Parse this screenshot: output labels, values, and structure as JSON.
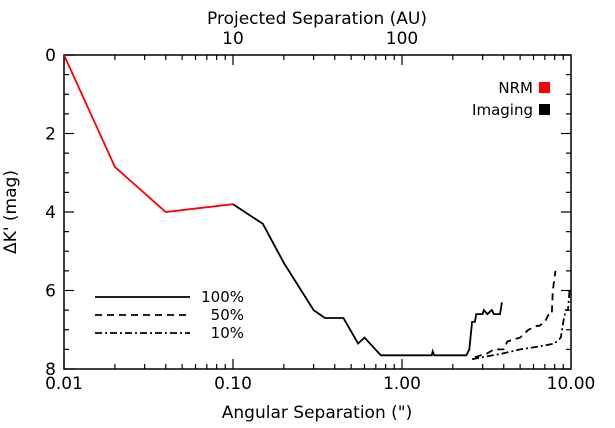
{
  "chart_data": {
    "type": "line",
    "xlabel": "Angular Separation (\")",
    "ylabel": "ΔK' (mag)",
    "top_xlabel": "Projected Separation (AU)",
    "x_scale": "log",
    "xlim": [
      0.01,
      10
    ],
    "ylim": [
      8,
      0
    ],
    "x_ticks": [
      {
        "value": 0.01,
        "label": "0.01"
      },
      {
        "value": 0.1,
        "label": "0.10"
      },
      {
        "value": 1,
        "label": "1.00"
      },
      {
        "value": 10,
        "label": "10.00"
      }
    ],
    "y_ticks": [
      {
        "value": 0,
        "label": "0"
      },
      {
        "value": 2,
        "label": "2"
      },
      {
        "value": 4,
        "label": "4"
      },
      {
        "value": 6,
        "label": "6"
      },
      {
        "value": 8,
        "label": "8"
      }
    ],
    "top_ticks": [
      {
        "value": 10,
        "label": "10"
      },
      {
        "value": 100,
        "label": "100"
      }
    ],
    "top_axis_factor": 100,
    "color_legend": [
      {
        "name": "NRM",
        "color": "#ff0000"
      },
      {
        "name": "Imaging",
        "color": "#000000"
      }
    ],
    "style_legend": [
      {
        "name": "100%",
        "dash": "solid"
      },
      {
        "name": "50%",
        "dash": "dashed"
      },
      {
        "name": "10%",
        "dash": "dashdot"
      }
    ],
    "series": [
      {
        "color": "#ff0000",
        "dash": "solid",
        "points": [
          [
            0.01,
            0.0
          ],
          [
            0.02,
            2.85
          ],
          [
            0.04,
            4.0
          ],
          [
            0.1,
            3.8
          ]
        ]
      },
      {
        "color": "#000000",
        "dash": "solid",
        "points": [
          [
            0.1,
            3.8
          ],
          [
            0.15,
            4.3
          ],
          [
            0.2,
            5.3
          ],
          [
            0.3,
            6.5
          ],
          [
            0.35,
            6.7
          ],
          [
            0.45,
            6.7
          ],
          [
            0.55,
            7.35
          ],
          [
            0.6,
            7.2
          ],
          [
            0.75,
            7.65
          ],
          [
            1.0,
            7.65
          ],
          [
            1.5,
            7.65
          ],
          [
            1.52,
            7.55
          ],
          [
            1.55,
            7.65
          ],
          [
            2.4,
            7.65
          ],
          [
            2.5,
            7.5
          ],
          [
            2.6,
            6.8
          ],
          [
            2.7,
            6.8
          ],
          [
            2.75,
            6.6
          ],
          [
            3.0,
            6.6
          ],
          [
            3.05,
            6.5
          ],
          [
            3.2,
            6.6
          ],
          [
            3.4,
            6.5
          ],
          [
            3.5,
            6.6
          ],
          [
            3.8,
            6.6
          ],
          [
            3.9,
            6.3
          ]
        ]
      },
      {
        "color": "#000000",
        "dash": "dashed",
        "points": [
          [
            2.7,
            7.7
          ],
          [
            3.2,
            7.6
          ],
          [
            3.5,
            7.5
          ],
          [
            4.0,
            7.5
          ],
          [
            4.2,
            7.3
          ],
          [
            5.0,
            7.2
          ],
          [
            5.6,
            7.0
          ],
          [
            6.3,
            6.9
          ],
          [
            6.5,
            6.9
          ],
          [
            7.0,
            6.8
          ],
          [
            7.4,
            6.6
          ],
          [
            7.7,
            6.6
          ],
          [
            7.8,
            6.0
          ],
          [
            8.1,
            5.5
          ]
        ]
      },
      {
        "color": "#000000",
        "dash": "dashdot",
        "points": [
          [
            2.6,
            7.75
          ],
          [
            3.0,
            7.7
          ],
          [
            4.0,
            7.6
          ],
          [
            5.0,
            7.5
          ],
          [
            6.0,
            7.45
          ],
          [
            7.0,
            7.4
          ],
          [
            8.0,
            7.35
          ],
          [
            8.7,
            7.2
          ],
          [
            9.0,
            6.8
          ],
          [
            9.3,
            6.5
          ],
          [
            9.6,
            6.5
          ],
          [
            9.8,
            6.0
          ],
          [
            10.0,
            6.2
          ]
        ]
      }
    ]
  }
}
